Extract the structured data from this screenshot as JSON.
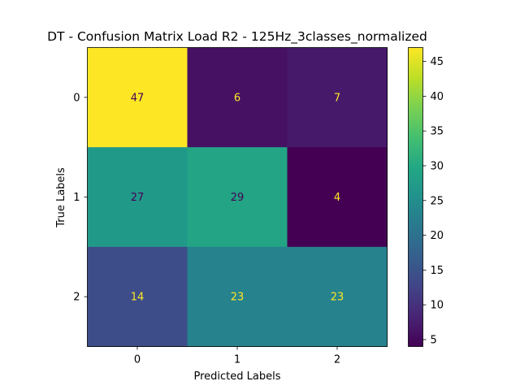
{
  "chart_data": {
    "type": "heatmap",
    "title": "DT - Confusion Matrix Load R2 - 125Hz_3classes_normalized",
    "xlabel": "Predicted Labels",
    "ylabel": "True Labels",
    "x_categories": [
      "0",
      "1",
      "2"
    ],
    "y_categories": [
      "0",
      "1",
      "2"
    ],
    "matrix": [
      [
        47,
        6,
        7
      ],
      [
        27,
        29,
        4
      ],
      [
        14,
        23,
        23
      ]
    ],
    "colormap": "viridis",
    "colorbar": {
      "vmin": 4,
      "vmax": 47,
      "ticks": [
        "5",
        "10",
        "15",
        "20",
        "25",
        "30",
        "35",
        "40",
        "45"
      ]
    },
    "label_colors": {
      "on_dark": "#fde725",
      "on_light": "#440154"
    }
  }
}
